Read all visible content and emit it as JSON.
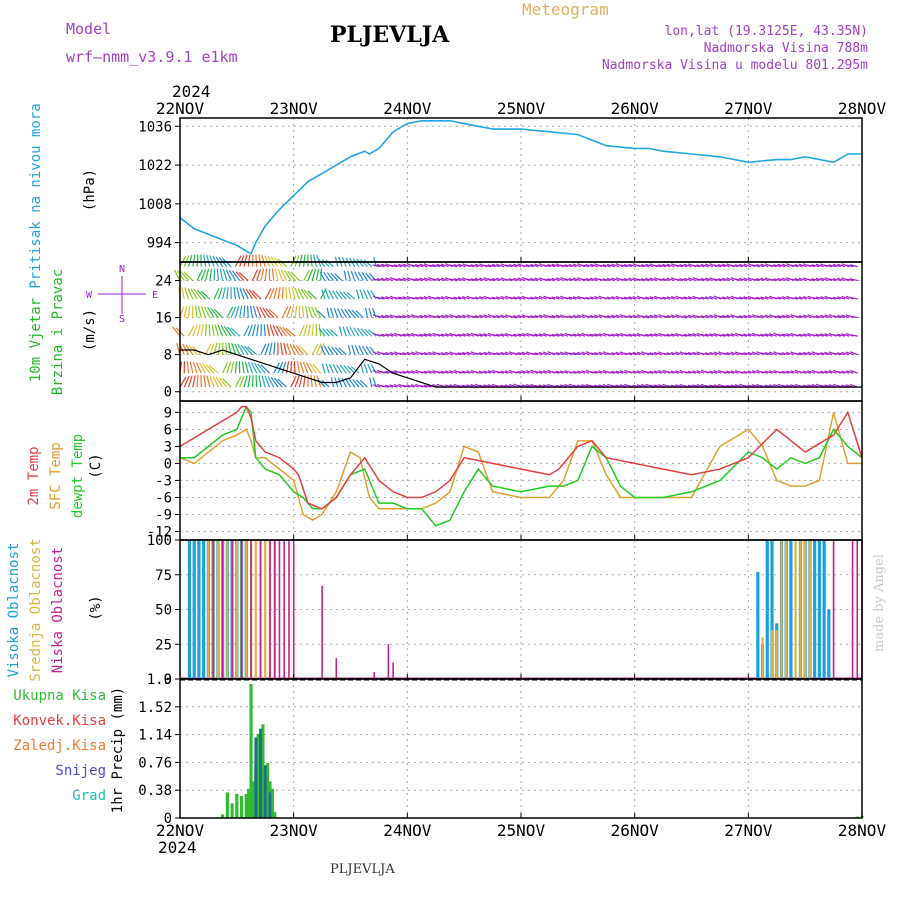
{
  "header": {
    "model_label": "Model",
    "model_name": "wrf—nmm_v3.9.1  e1km",
    "title": "PLJEVLJA",
    "meteogram_label": "Meteogram",
    "lonlat": "lon,lat (19.3125E, 43.35N)",
    "elevation": "Nadmorska Visina 788m",
    "model_elevation": "Nadmorska Visina u modelu 801.295m",
    "year_top": "2024",
    "year_bottom": "2024",
    "footer_station": "PLJEVLJA",
    "credit": "made by Angel"
  },
  "colors": {
    "pressure": "#22a6e8",
    "wind_green": "#22bb22",
    "wind_purple": "#a020c8",
    "temp2m": "#e8403c",
    "sfc": "#e0a030",
    "dewpt": "#22cc22",
    "cloud_high": "#1ca0e0",
    "cloud_mid": "#e0b040",
    "cloud_low": "#c8208c",
    "precip_total": "#33bb33",
    "precip_conv": "#e84040",
    "precip_frozen": "#f07a2a",
    "snow": "#4a4ae0",
    "hail": "#22bbbb",
    "precip_dark": "#1f6f8a",
    "wind_line": "#000000"
  },
  "chart_data": [
    {
      "type": "line",
      "title": "",
      "ylabel": "Pritisak na nivou mora",
      "unit": "(hPa)",
      "xlim": [
        0,
        144
      ],
      "ylim": [
        987,
        1039
      ],
      "yticks": [
        994,
        1008,
        1022,
        1036
      ],
      "x_tick_labels": [
        "22NOV",
        "23NOV",
        "24NOV",
        "25NOV",
        "26NOV",
        "27NOV",
        "28NOV"
      ],
      "grid": true,
      "series": [
        {
          "x": [
            0,
            3,
            6,
            9,
            12,
            14,
            15,
            16,
            18,
            21,
            24,
            27,
            30,
            33,
            36,
            39,
            40,
            42,
            43,
            45,
            48,
            51,
            54,
            57,
            60,
            66,
            72,
            78,
            84,
            90,
            96,
            99,
            102,
            108,
            114,
            120,
            126,
            129,
            132,
            138,
            141,
            144
          ],
          "y": [
            1003,
            999,
            997,
            995,
            993,
            991,
            990,
            994,
            1000,
            1006,
            1011,
            1016,
            1019,
            1022,
            1025,
            1027,
            1026,
            1028,
            1030,
            1034,
            1037,
            1038,
            1038,
            1038,
            1037,
            1035,
            1035,
            1034,
            1033,
            1029,
            1028,
            1028,
            1027,
            1026,
            1025,
            1023,
            1024,
            1024,
            1025,
            1023,
            1026,
            1026
          ]
        }
      ]
    },
    {
      "type": "line",
      "title": "",
      "ylabel": "10m Vjetar Brzina i Pravac",
      "unit": "(m/s)",
      "legend_compass": [
        "N",
        "E",
        "S",
        "W"
      ],
      "xlim": [
        0,
        144
      ],
      "ylim": [
        -2,
        28
      ],
      "yticks": [
        0,
        8,
        16,
        24
      ],
      "grid": true,
      "series": [
        {
          "x": [
            0,
            3,
            6,
            9,
            12,
            15,
            18,
            21,
            24,
            27,
            30,
            33,
            36,
            39,
            42,
            45,
            48,
            54,
            60,
            66,
            72,
            78,
            84,
            90,
            96,
            102,
            108,
            114,
            120,
            126,
            132,
            138,
            144
          ],
          "y": [
            9,
            9,
            8,
            9,
            8,
            7,
            6,
            5,
            4,
            3,
            2,
            2,
            3,
            7,
            6,
            4,
            3,
            1,
            1,
            1,
            1,
            1,
            1,
            1,
            1,
            1,
            1,
            1,
            1,
            1,
            1,
            1,
            1
          ]
        }
      ]
    },
    {
      "type": "line",
      "title": "",
      "ylabel": [
        "2m Temp",
        "SFC Temp",
        "dewpt Temp"
      ],
      "unit": "(C)",
      "xlim": [
        0,
        144
      ],
      "ylim": [
        -13.5,
        11
      ],
      "yticks": [
        -12,
        -9,
        -6,
        -3,
        0,
        3,
        6,
        9
      ],
      "grid": true,
      "series": [
        {
          "name": "2m Temp",
          "x": [
            0,
            2,
            4,
            6,
            8,
            10,
            12,
            13,
            14,
            15,
            16,
            18,
            21,
            24,
            25,
            27,
            30,
            33,
            36,
            39,
            42,
            45,
            48,
            51,
            54,
            57,
            60,
            66,
            72,
            78,
            80,
            84,
            87,
            90,
            96,
            102,
            108,
            114,
            120,
            126,
            129,
            132,
            138,
            141,
            144
          ],
          "y": [
            3,
            4,
            5,
            6,
            7,
            8,
            9,
            10,
            10,
            8,
            4,
            2,
            1,
            -1,
            -2,
            -7,
            -8,
            -6,
            -2,
            1,
            -3,
            -5,
            -6,
            -6,
            -5,
            -3,
            1,
            0,
            -1,
            -2,
            -1,
            3,
            4,
            1,
            0,
            -1,
            -2,
            -1,
            1,
            6,
            4,
            2,
            5,
            9,
            1
          ]
        },
        {
          "name": "SFC Temp",
          "x": [
            0,
            3,
            6,
            9,
            12,
            14,
            15,
            16,
            18,
            21,
            24,
            26,
            28,
            30,
            33,
            36,
            38,
            40,
            42,
            45,
            48,
            51,
            54,
            57,
            60,
            63,
            66,
            72,
            78,
            81,
            84,
            87,
            90,
            93,
            96,
            102,
            108,
            114,
            120,
            123,
            126,
            129,
            132,
            135,
            138,
            141,
            144
          ],
          "y": [
            1,
            0,
            2,
            4,
            5,
            6,
            4,
            1,
            1,
            -1,
            -3,
            -9,
            -10,
            -9,
            -5,
            2,
            1,
            -6,
            -8,
            -8,
            -8,
            -8,
            -7,
            -5,
            3,
            2,
            -5,
            -6,
            -6,
            -3,
            4,
            4,
            -2,
            -6,
            -6,
            -6,
            -6,
            3,
            6,
            3,
            -3,
            -4,
            -4,
            -3,
            9,
            0,
            0
          ]
        },
        {
          "name": "dewpt Temp",
          "x": [
            0,
            3,
            6,
            9,
            12,
            14,
            15,
            16,
            18,
            21,
            24,
            26,
            28,
            30,
            33,
            36,
            39,
            42,
            45,
            48,
            51,
            54,
            57,
            60,
            63,
            66,
            72,
            78,
            81,
            84,
            87,
            90,
            93,
            96,
            102,
            108,
            114,
            120,
            123,
            126,
            129,
            132,
            135,
            138,
            141,
            144
          ],
          "y": [
            1,
            1,
            3,
            5,
            6,
            10,
            9,
            1,
            -1,
            -2,
            -5,
            -6,
            -8,
            -8,
            -6,
            -2,
            -1,
            -7,
            -7,
            -8,
            -8,
            -11,
            -10,
            -5,
            -1,
            -4,
            -5,
            -4,
            -4,
            -3,
            3,
            1,
            -4,
            -6,
            -6,
            -5,
            -3,
            2,
            1,
            -1,
            1,
            0,
            1,
            6,
            3,
            1
          ]
        }
      ]
    },
    {
      "type": "bar",
      "title": "",
      "ylabel": [
        "Visoka Oblacnost",
        "Srednja Oblacnost",
        "Niska Oblacnost"
      ],
      "unit": "(%)",
      "xlim": [
        0,
        144
      ],
      "ylim": [
        0,
        100
      ],
      "yticks": [
        0,
        25,
        50,
        75,
        100
      ],
      "grid": true,
      "series": [
        {
          "name": "Visoka Oblacnost",
          "x": [
            2,
            3,
            4,
            5,
            6,
            7,
            8,
            9,
            10,
            11,
            12,
            13,
            14,
            122,
            123,
            124,
            125,
            126,
            127,
            128,
            129,
            131,
            132,
            133,
            134,
            135,
            136,
            137
          ],
          "y": [
            100,
            100,
            100,
            100,
            100,
            100,
            100,
            100,
            100,
            100,
            100,
            100,
            100,
            77,
            25,
            100,
            100,
            40,
            100,
            100,
            100,
            100,
            100,
            100,
            100,
            100,
            100,
            50
          ]
        },
        {
          "name": "Srednja Oblacnost",
          "x": [
            6,
            7,
            8,
            9,
            10,
            11,
            12,
            13,
            14,
            15,
            16,
            17,
            18,
            19,
            20,
            123,
            125,
            126,
            127,
            128,
            130,
            131,
            132,
            133
          ],
          "y": [
            100,
            100,
            100,
            100,
            100,
            100,
            100,
            100,
            100,
            100,
            100,
            100,
            100,
            100,
            100,
            30,
            35,
            35,
            100,
            100,
            100,
            100,
            100,
            100
          ]
        },
        {
          "name": "Niska Oblacnost",
          "x": [
            7,
            9,
            11,
            13,
            15,
            17,
            19,
            20,
            21,
            22,
            23,
            24,
            30,
            33,
            41,
            44,
            45,
            138,
            142,
            143,
            144
          ],
          "y": [
            100,
            100,
            100,
            100,
            100,
            100,
            100,
            100,
            100,
            100,
            100,
            100,
            67,
            15,
            5,
            25,
            12,
            100,
            100,
            100,
            100
          ]
        }
      ]
    },
    {
      "type": "bar",
      "title": "",
      "ylabel": [
        "Ukupna Kisa",
        "Konvek.Kisa",
        "Zaledj.Kisa",
        "Snijeg",
        "Grad"
      ],
      "unit": "1hr Precip (mm)",
      "xlim": [
        0,
        144
      ],
      "ylim": [
        0,
        1.9
      ],
      "yticks": [
        0,
        0.38,
        0.76,
        1.14,
        1.52,
        1.9
      ],
      "x_tick_labels": [
        "22NOV",
        "23NOV",
        "24NOV",
        "25NOV",
        "26NOV",
        "27NOV",
        "28NOV"
      ],
      "grid": true,
      "series": [
        {
          "name": "Ukupna Kisa",
          "x": [
            9,
            10,
            11,
            12,
            13,
            14,
            14.5,
            15,
            15.5,
            16,
            16.5,
            17,
            17.5,
            18,
            18.5,
            19,
            19.5,
            20,
            143,
            144
          ],
          "y": [
            0.05,
            0.35,
            0.2,
            0.33,
            0.3,
            0.33,
            0.4,
            1.83,
            0.5,
            0.7,
            1.15,
            0.5,
            1.28,
            0.5,
            0.75,
            0.5,
            0.4,
            0.08,
            0.02,
            0.03
          ]
        },
        {
          "name": "Konvek.Kisa",
          "x": [],
          "y": []
        },
        {
          "name": "Zaledj.Kisa",
          "x": [],
          "y": []
        },
        {
          "name": "Snijeg",
          "x": [],
          "y": []
        },
        {
          "name": "Grad",
          "x": [
            16,
            17,
            18,
            19
          ],
          "y": [
            1.1,
            1.22,
            0.72,
            0.35
          ]
        }
      ]
    }
  ]
}
